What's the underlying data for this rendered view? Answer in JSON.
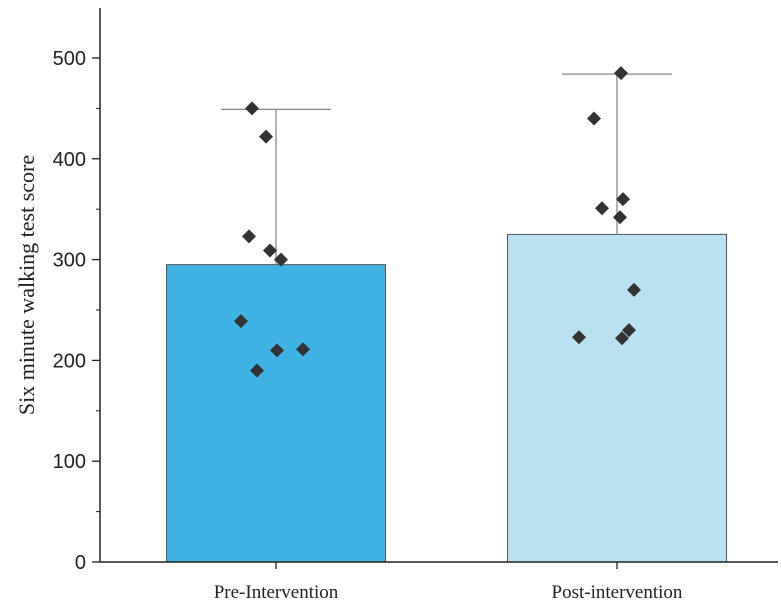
{
  "chart_data": {
    "type": "bar",
    "title": "",
    "xlabel": "",
    "ylabel": "Six minute walking test score",
    "categories": [
      "Pre-Intervention",
      "Post-intervention"
    ],
    "values": [
      295,
      325
    ],
    "error_upper": [
      449,
      484
    ],
    "ylim": [
      0,
      550
    ],
    "yticks": [
      0,
      100,
      200,
      300,
      400,
      500
    ],
    "ytick_labels": [
      "0",
      "100",
      "200",
      "300",
      "400",
      "500"
    ],
    "grid": false,
    "legend": "none",
    "points": [
      [
        450,
        422,
        323,
        309,
        300,
        239,
        210,
        211,
        190
      ],
      [
        485,
        440,
        360,
        351,
        342,
        270,
        230,
        223,
        222
      ]
    ],
    "colors": {
      "bars": [
        "#3fb3e3",
        "#b8e1f1"
      ],
      "bar_edge": "#555555",
      "points": "#333333",
      "axis": "#222222",
      "error": "#888888"
    }
  }
}
